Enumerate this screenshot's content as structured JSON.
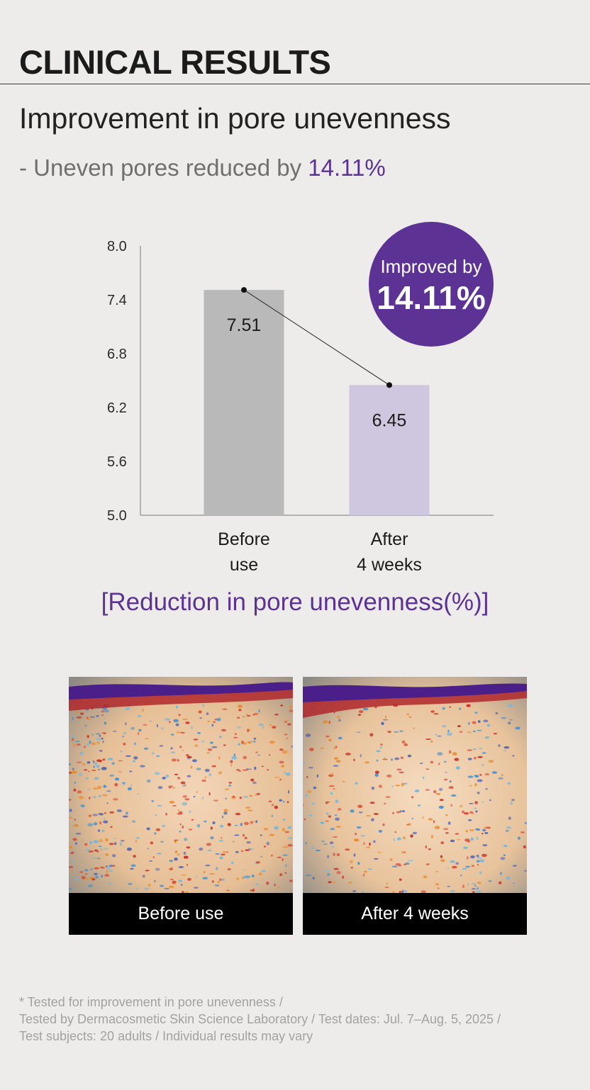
{
  "header": {
    "title": "CLINICAL RESULTS"
  },
  "heading": "Improvement in pore unevenness",
  "subheading": {
    "prefix": "- Uneven pores reduced by ",
    "value": "14.11%"
  },
  "colors": {
    "accent": "#5c3394",
    "before_bar": "#b9b9b9",
    "after_bar": "#cfc6e0",
    "badge": "#5c3394"
  },
  "chart_data": {
    "type": "bar",
    "categories": [
      "Before use",
      "After 4 weeks"
    ],
    "category_lines": [
      [
        "Before",
        "use"
      ],
      [
        "After",
        "4 weeks"
      ]
    ],
    "values": [
      7.51,
      6.45
    ],
    "data_labels": [
      "7.51",
      "6.45"
    ],
    "yticks": [
      "8.0",
      "7.4",
      "6.8",
      "6.2",
      "5.6",
      "5.0"
    ],
    "ylim": [
      5.0,
      8.0
    ],
    "trend_line": true,
    "badge": {
      "line1": "Improved by",
      "line2": "14.11%"
    },
    "caption": "[Reduction in pore unevenness(%)]"
  },
  "photos": [
    {
      "label": "Before use",
      "icon": "skin-analysis-image"
    },
    {
      "label": "After 4 weeks",
      "icon": "skin-analysis-image"
    }
  ],
  "footnote": [
    "* Tested for improvement in pore unevenness /",
    "Tested by Dermacosmetic Skin Science Laboratory / Test dates: Jul. 7–Aug. 5, 2025 /",
    "Test subjects: 20 adults / Individual results may vary"
  ]
}
